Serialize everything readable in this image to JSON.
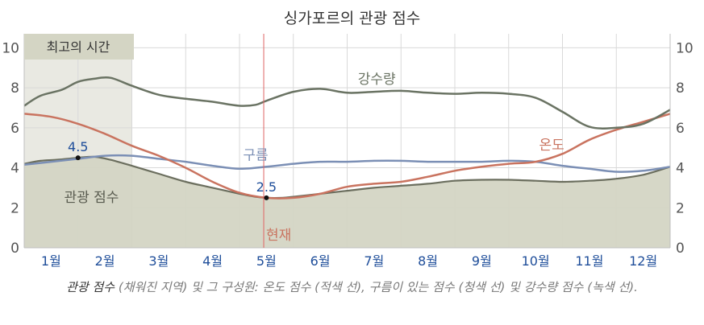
{
  "title": "싱가포르의 관광 점수",
  "best_time_label": "최고의 시간",
  "now_label": "현재",
  "caption": {
    "lead": "관광 점수",
    "rest": " (채워진 지역) 및 그 구성원: 온도 점수 (적색 선), 구름이 있는 점수 (청색 선) 및 강수량 점수 (녹색 선)."
  },
  "colors": {
    "tourism_fill": "#d4d5c4",
    "tourism_line": "#6b6e5e",
    "temperature": "#c9735f",
    "clouds": "#7b8fb5",
    "precipitation": "#6a7363",
    "best_time_band": "#e9e9e2",
    "now_line": "#e06666",
    "month_labels": "#1f4e9a",
    "value_labels": "#1f4e9a"
  },
  "chart_data": {
    "type": "area",
    "title": "싱가포르의 관광 점수",
    "x_axis": {
      "range": [
        0,
        12
      ],
      "unit": "month",
      "tick_labels": [
        "1월",
        "2월",
        "3월",
        "4월",
        "5월",
        "6월",
        "7월",
        "8월",
        "9월",
        "10월",
        "11월",
        "12월"
      ]
    },
    "y_axis": {
      "range": [
        0,
        10
      ],
      "ticks": [
        0,
        2,
        4,
        6,
        8,
        10
      ],
      "left": true,
      "right": true
    },
    "grid": true,
    "best_time": {
      "label": "최고의 시간",
      "from": 0,
      "to": 2
    },
    "now": {
      "label": "현재",
      "x": 4.45
    },
    "series": [
      {
        "name": "관광 점수",
        "style": "area",
        "x": [
          0,
          0.3,
          0.6,
          1,
          1.3,
          1.6,
          2,
          2.5,
          3,
          3.5,
          4,
          4.3,
          4.5,
          4.8,
          5,
          5.5,
          6,
          6.5,
          7,
          7.5,
          8,
          8.5,
          9,
          9.5,
          10,
          10.5,
          11,
          11.5,
          12
        ],
        "y": [
          4.2,
          4.35,
          4.4,
          4.5,
          4.55,
          4.4,
          4.1,
          3.7,
          3.3,
          3.0,
          2.7,
          2.55,
          2.5,
          2.5,
          2.55,
          2.7,
          2.85,
          3.0,
          3.1,
          3.2,
          3.35,
          3.4,
          3.4,
          3.35,
          3.3,
          3.35,
          3.45,
          3.65,
          4.05
        ]
      },
      {
        "name": "구름",
        "style": "line",
        "x": [
          0,
          0.5,
          1,
          1.5,
          2,
          2.5,
          3,
          3.5,
          4,
          4.5,
          5,
          5.5,
          6,
          6.5,
          7,
          7.5,
          8,
          8.5,
          9,
          9.5,
          10,
          10.5,
          11,
          11.5,
          12
        ],
        "y": [
          4.15,
          4.3,
          4.45,
          4.6,
          4.6,
          4.45,
          4.3,
          4.1,
          3.95,
          4.05,
          4.2,
          4.3,
          4.3,
          4.35,
          4.35,
          4.3,
          4.3,
          4.3,
          4.35,
          4.3,
          4.1,
          3.95,
          3.8,
          3.85,
          4.05
        ]
      },
      {
        "name": "온도",
        "style": "line",
        "x": [
          0,
          0.5,
          1,
          1.5,
          2,
          2.5,
          3,
          3.5,
          4,
          4.5,
          5,
          5.5,
          6,
          6.5,
          7,
          7.5,
          8,
          8.5,
          9,
          9.5,
          10,
          10.5,
          11,
          11.5,
          12
        ],
        "y": [
          6.7,
          6.55,
          6.2,
          5.7,
          5.1,
          4.6,
          4.0,
          3.3,
          2.75,
          2.5,
          2.5,
          2.7,
          3.05,
          3.2,
          3.3,
          3.55,
          3.85,
          4.05,
          4.2,
          4.3,
          4.7,
          5.4,
          5.9,
          6.3,
          6.7
        ]
      },
      {
        "name": "강수량",
        "style": "line",
        "x": [
          0,
          0.3,
          0.7,
          1,
          1.3,
          1.6,
          2,
          2.5,
          3,
          3.5,
          4,
          4.3,
          4.5,
          5,
          5.5,
          6,
          6.5,
          7,
          7.5,
          8,
          8.5,
          9,
          9.5,
          10,
          10.5,
          11,
          11.5,
          12
        ],
        "y": [
          7.1,
          7.6,
          7.9,
          8.3,
          8.45,
          8.5,
          8.1,
          7.65,
          7.45,
          7.3,
          7.1,
          7.15,
          7.35,
          7.8,
          7.95,
          7.75,
          7.8,
          7.85,
          7.75,
          7.7,
          7.75,
          7.7,
          7.5,
          6.8,
          6.05,
          6.0,
          6.2,
          6.9
        ]
      }
    ],
    "annotations": [
      {
        "text": "4.5",
        "x": 1,
        "y": 4.5,
        "point": true
      },
      {
        "text": "2.5",
        "x": 4.5,
        "y": 2.5,
        "point": true
      }
    ],
    "series_labels": [
      {
        "text": "관광 점수",
        "x": 1.25,
        "y": 2.3
      },
      {
        "text": "구름",
        "x": 4.3,
        "y": 4.4
      },
      {
        "text": "온도",
        "x": 9.8,
        "y": 4.9
      },
      {
        "text": "강수량",
        "x": 6.55,
        "y": 8.2
      }
    ]
  }
}
